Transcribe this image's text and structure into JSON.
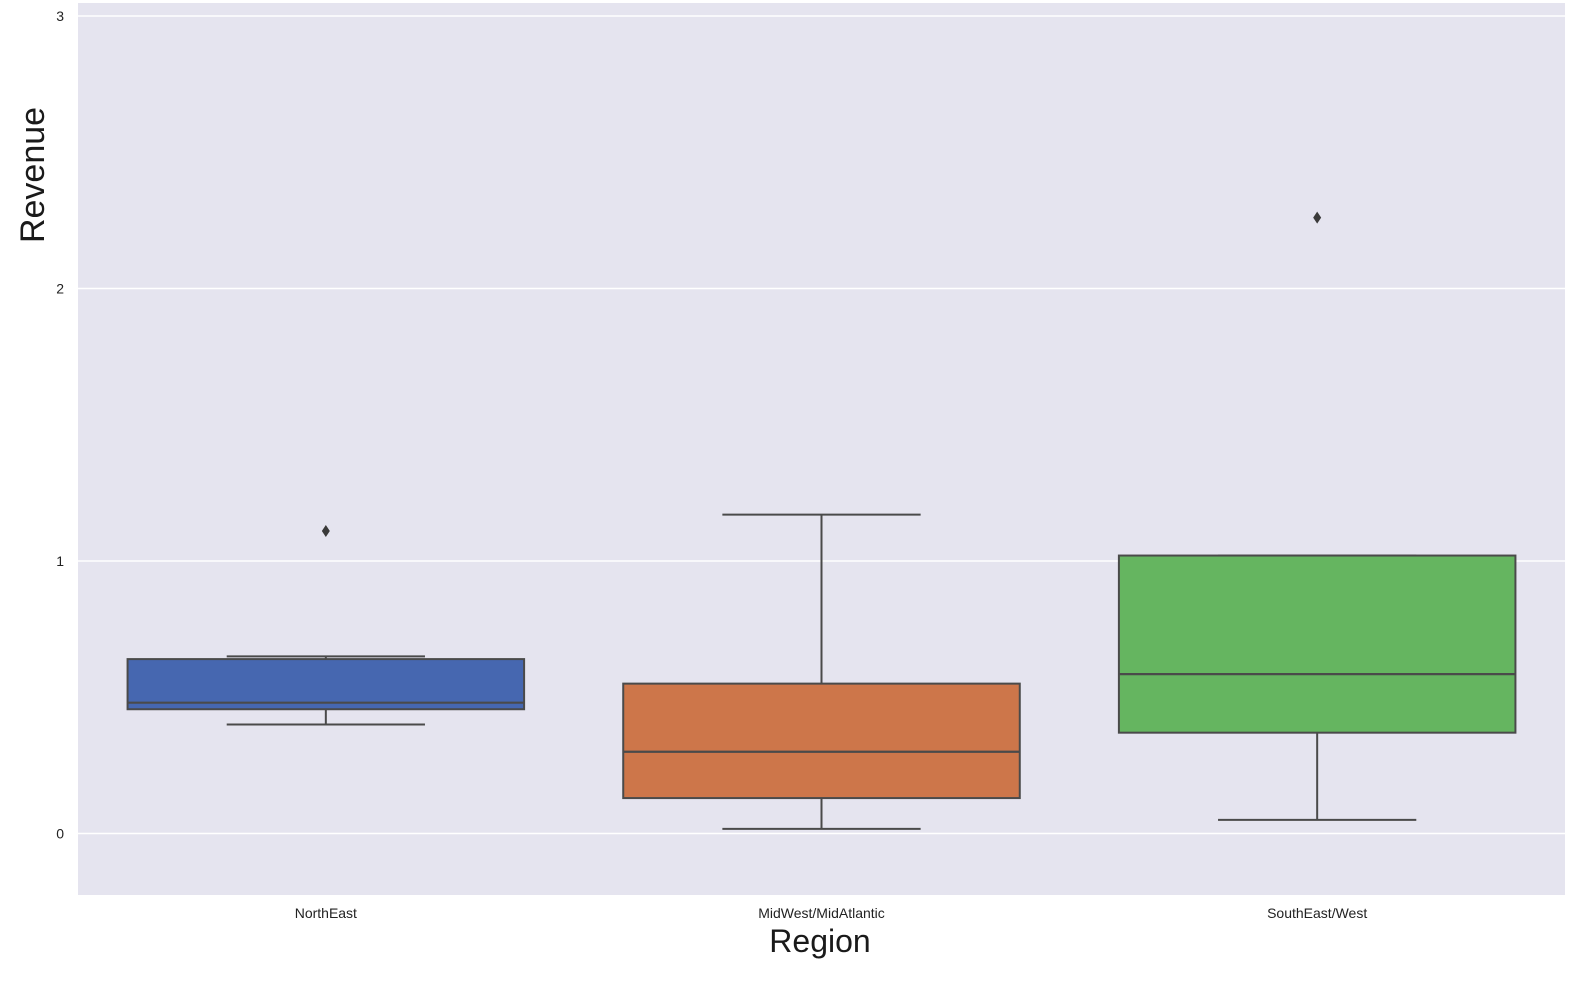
{
  "chart_data": {
    "type": "box",
    "xlabel": "Region",
    "ylabel": "Revenue",
    "categories": [
      "NorthEast",
      "MidWest/MidAtlantic",
      "SouthEast/West"
    ],
    "yticks": [
      0,
      1,
      2,
      3
    ],
    "ylim": [
      -0.22,
      3.05
    ],
    "grid": true,
    "boxes": [
      {
        "category": "NorthEast",
        "whisker_low": 0.4,
        "q1": 0.456,
        "median": 0.48,
        "q3": 0.64,
        "whisker_high": 0.65,
        "outliers": [
          1.11
        ],
        "color": "#4667b0"
      },
      {
        "category": "MidWest/MidAtlantic",
        "whisker_low": 0.017,
        "q1": 0.13,
        "median": 0.3,
        "q3": 0.55,
        "whisker_high": 1.17,
        "outliers": [],
        "color": "#cd764a"
      },
      {
        "category": "SouthEast/West",
        "whisker_low": 0.05,
        "q1": 0.37,
        "median": 0.585,
        "q3": 1.02,
        "whisker_high": 1.02,
        "outliers": [
          2.26
        ],
        "color": "#65b560"
      }
    ],
    "colors": {
      "background": "#e5e4ef",
      "grid": "#ffffff",
      "line": "#4a4a4a"
    }
  }
}
